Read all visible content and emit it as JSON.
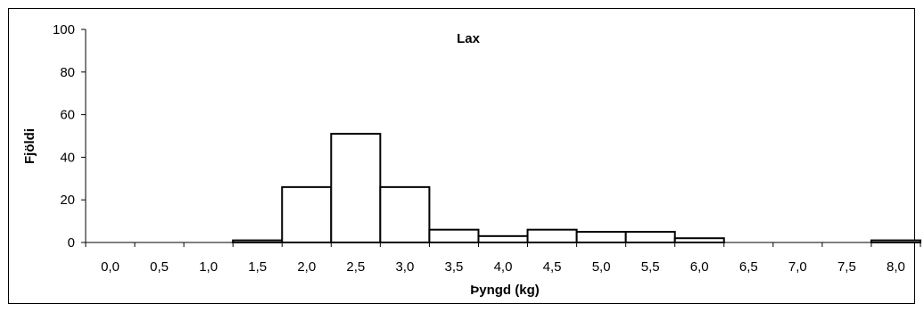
{
  "chart_data": {
    "type": "bar",
    "title": "Lax",
    "xlabel": "Þyngd (kg)",
    "ylabel": "Fjöldi",
    "categories": [
      "0,0",
      "0,5",
      "1,0",
      "1,5",
      "2,0",
      "2,5",
      "3,0",
      "3,5",
      "4,0",
      "4,5",
      "5,0",
      "5,5",
      "6,0",
      "6,5",
      "7,0",
      "7,5",
      "8,0"
    ],
    "values": [
      0,
      0,
      0,
      1,
      26,
      51,
      26,
      6,
      3,
      6,
      5,
      5,
      2,
      0,
      0,
      0,
      1
    ],
    "ylim": [
      0,
      100
    ],
    "yticks": [
      0,
      20,
      40,
      60,
      80,
      100
    ],
    "grid": false,
    "legend": "none",
    "colors": {
      "bar_fill": "#ffffff",
      "bar_stroke": "#000000",
      "axis": "#000000"
    }
  }
}
